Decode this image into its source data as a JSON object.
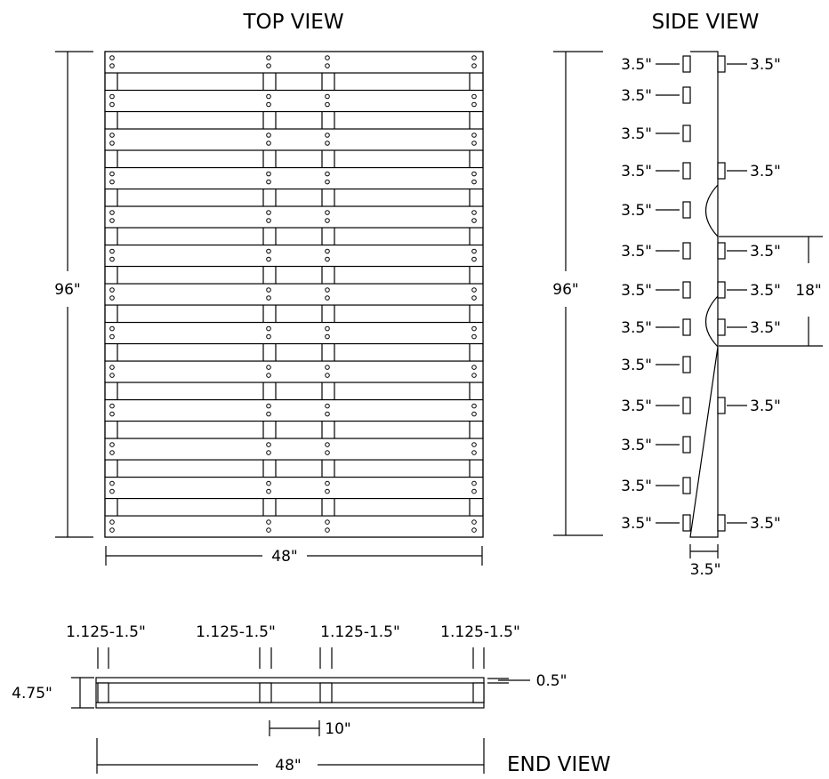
{
  "top_view": {
    "title": "TOP VIEW",
    "length_label": "96\"",
    "width_label": "48\""
  },
  "side_view": {
    "title": "SIDE VIEW",
    "length_label": "96\"",
    "bottom_width_label": "3.5\"",
    "notch_span_label": "18\"",
    "left_labels": [
      "3.5\"",
      "3.5\"",
      "3.5\"",
      "3.5\"",
      "3.5\"",
      "3.5\"",
      "3.5\"",
      "3.5\"",
      "3.5\"",
      "3.5\"",
      "3.5\"",
      "3.5\"",
      "3.5\""
    ],
    "right_labels": [
      "3.5\"",
      "3.5\"",
      "3.5\"",
      "3.5\"",
      "3.5\"",
      "3.5\"",
      "3.5\""
    ]
  },
  "end_view": {
    "title": "END VIEW",
    "stringer_labels": [
      "1.125-1.5\"",
      "1.125-1.5\"",
      "1.125-1.5\"",
      "1.125-1.5\""
    ],
    "height_label": "4.75\"",
    "deck_label": "0.5\"",
    "gap_label": "10\"",
    "width_label": "48\""
  }
}
